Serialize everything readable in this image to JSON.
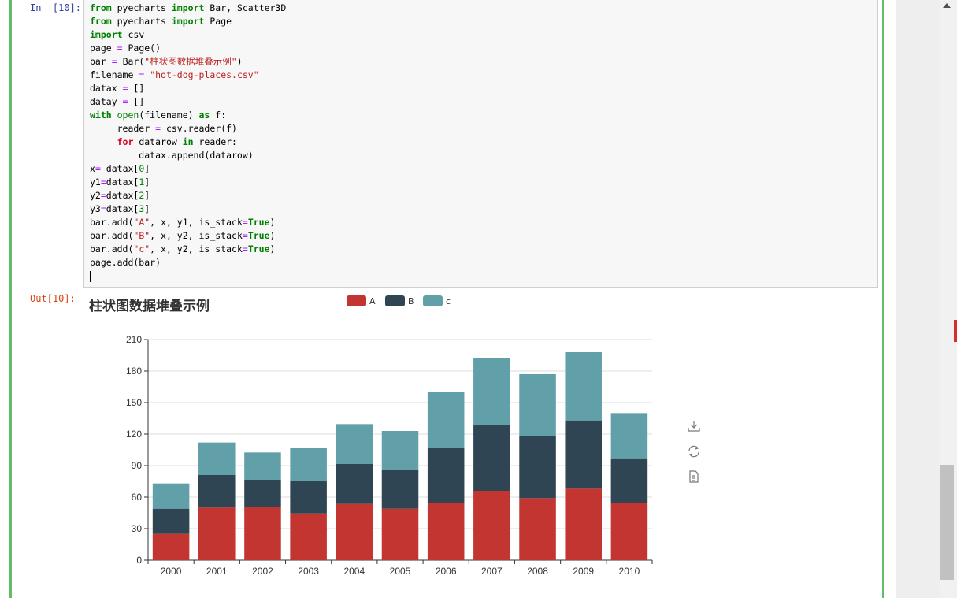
{
  "cell": {
    "in_prompt": "In  [10]:",
    "out_prompt": "Out[10]:"
  },
  "code": {
    "line1a": "from",
    "line1b": " pyecharts ",
    "line1c": "import",
    "line1d": " Bar, Scatter3D",
    "line2a": "from",
    "line2b": " pyecharts ",
    "line2c": "import",
    "line2d": " Page",
    "line3a": "import",
    "line3b": " csv",
    "line4a": "page ",
    "line4b": "=",
    "line4c": " Page()",
    "line5a": "bar ",
    "line5b": "=",
    "line5c": " Bar(",
    "line5d": "\"柱状图数据堆叠示例\"",
    "line5e": ")",
    "line6a": "filename ",
    "line6b": "=",
    "line6c": " ",
    "line6d": "\"hot-dog-places.csv\"",
    "line7a": "datax ",
    "line7b": "=",
    "line7c": " []",
    "line8a": "datay ",
    "line8b": "=",
    "line8c": " []",
    "line9a": "with",
    "line9b": " open",
    "line9c": "(filename) ",
    "line9d": "as",
    "line9e": " f:",
    "line10a": "     reader ",
    "line10b": "=",
    "line10c": " csv.reader(f)",
    "line11a": "     ",
    "line11b": "for",
    "line11c": " datarow ",
    "line11d": "in",
    "line11e": " reader:",
    "line12": "         datax.append(datarow)",
    "line13a": "x",
    "line13b": "=",
    "line13c": " datax[",
    "line13d": "0",
    "line13e": "]",
    "line14a": "y1",
    "line14b": "=",
    "line14c": "datax[",
    "line14d": "1",
    "line14e": "]",
    "line15a": "y2",
    "line15b": "=",
    "line15c": "datax[",
    "line15d": "2",
    "line15e": "]",
    "line16a": "y3",
    "line16b": "=",
    "line16c": "datax[",
    "line16d": "3",
    "line16e": "]",
    "line17a": "bar.add(",
    "line17b": "\"A\"",
    "line17c": ", x, y1, is_stack",
    "line17d": "=",
    "line17e": "True",
    "line17f": ")",
    "line18a": "bar.add(",
    "line18b": "\"B\"",
    "line18c": ", x, y2, is_stack",
    "line18d": "=",
    "line18e": "True",
    "line18f": ")",
    "line19a": "bar.add(",
    "line19b": "\"c\"",
    "line19c": ", x, y2, is_stack",
    "line19d": "=",
    "line19e": "True",
    "line19f": ")",
    "line20": "page.add(bar)"
  },
  "chart_data": {
    "type": "bar",
    "stacked": true,
    "title": "柱状图数据堆叠示例",
    "categories": [
      "2000",
      "2001",
      "2002",
      "2003",
      "2004",
      "2005",
      "2006",
      "2007",
      "2008",
      "2009",
      "2010"
    ],
    "series": [
      {
        "name": "A",
        "color": "#c23531",
        "values": [
          25,
          50,
          50.5,
          44.5,
          53.5,
          49,
          54,
          66,
          59,
          68,
          54
        ]
      },
      {
        "name": "B",
        "color": "#2f4554",
        "values": [
          24,
          31,
          26,
          31,
          38,
          37,
          53,
          63,
          59,
          65,
          43
        ]
      },
      {
        "name": "c",
        "color": "#61a0a8",
        "values": [
          24,
          31,
          26,
          31,
          38,
          37,
          53,
          63,
          59,
          65,
          43
        ]
      }
    ],
    "ylim": [
      0,
      210
    ],
    "yticks": [
      0,
      30,
      60,
      90,
      120,
      150,
      180,
      210
    ],
    "grid": true,
    "legend_position": "top-center"
  },
  "toolbox": {
    "icons": [
      "download-icon",
      "refresh-icon",
      "data-view-icon"
    ]
  }
}
